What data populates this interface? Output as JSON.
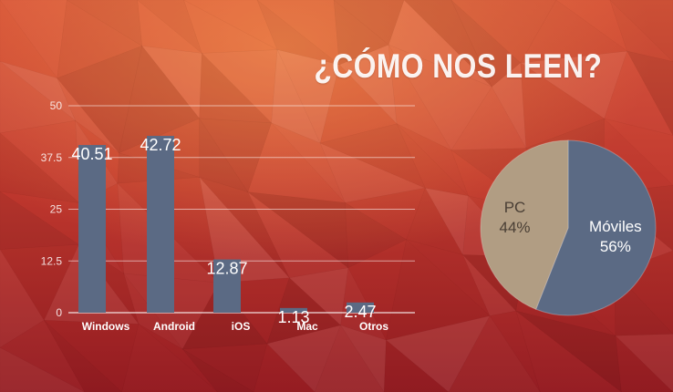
{
  "slide": {
    "title": "¿CÓMO NOS LEEN?"
  },
  "colors": {
    "bar": "#5b6a84",
    "pie_mobile": "#5b6a84",
    "pie_pc": "#b19d83",
    "background_top": "#d8553a",
    "background_bottom": "#951c22"
  },
  "chart_data": [
    {
      "type": "bar",
      "categories": [
        "Windows",
        "Android",
        "iOS",
        "Mac",
        "Otros"
      ],
      "values": [
        40.51,
        42.72,
        12.87,
        1.13,
        2.47
      ],
      "data_labels": [
        "40.51",
        "42.72",
        "12.87",
        "1.13",
        "2.47"
      ],
      "yticks": [
        "0",
        "12.5",
        "25",
        "37.5",
        "50"
      ],
      "ylim": [
        0,
        50
      ],
      "grid": true
    },
    {
      "type": "pie",
      "slices": [
        {
          "name": "Móviles",
          "value": 56,
          "label": "56%"
        },
        {
          "name": "PC",
          "value": 44,
          "label": "44%"
        }
      ]
    }
  ]
}
